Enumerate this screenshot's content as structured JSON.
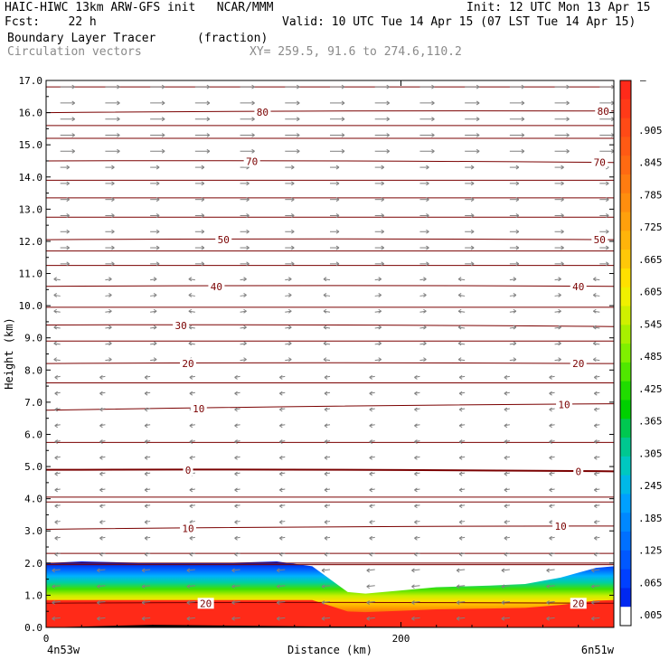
{
  "header": {
    "model_line": "HAIC-HIWC 13km ARW-GFS init   NCAR/MMM",
    "init_line": "Init: 12 UTC Mon 13 Apr 15",
    "fcst_label": "Fcst:    22 h",
    "valid_line": "Valid: 10 UTC Tue 14 Apr 15 (07 LST Tue 14 Apr 15)",
    "field_name": "Boundary Layer Tracer",
    "field_units": "(fraction)",
    "vector_name": "Circulation vectors",
    "xy_line": "XY= 259.5, 91.6 to 274.6,110.2"
  },
  "chart_data": {
    "type": "heatmap",
    "xlabel": "Distance (km)",
    "ylabel": "Height (km)",
    "xlim": [
      0,
      320
    ],
    "ylim": [
      0,
      17
    ],
    "x_ticks": [
      0,
      200
    ],
    "x_tick_labels": [
      "0",
      "200"
    ],
    "x_end_labels": {
      "left": "4n53w",
      "right": "6n51w"
    },
    "y_ticks": [
      0,
      1,
      2,
      3,
      4,
      5,
      6,
      7,
      8,
      9,
      10,
      11,
      12,
      13,
      14,
      15,
      16,
      17
    ],
    "y_tick_labels": [
      "0.0",
      "1.0",
      "2.0",
      "3.0",
      "4.0",
      "5.0",
      "6.0",
      "7.0",
      "8.0",
      "9.0",
      "10.0",
      "11.0",
      "12.0",
      "13.0",
      "14.0",
      "15.0",
      "16.0",
      "17.0"
    ],
    "colorbar": {
      "labels": [
        ".905",
        ".845",
        ".785",
        ".725",
        ".665",
        ".605",
        ".545",
        ".485",
        ".425",
        ".365",
        ".305",
        ".245",
        ".185",
        ".125",
        ".065",
        ".005"
      ],
      "colors": [
        "#ff2a1a",
        "#ff3a18",
        "#ff4a16",
        "#ff5a14",
        "#ff6a12",
        "#ff7c10",
        "#ff8e0e",
        "#ffa00c",
        "#ffb40a",
        "#ffc808",
        "#ffe000",
        "#f0f000",
        "#d0f000",
        "#a8f000",
        "#80f000",
        "#50e800",
        "#20dc00",
        "#00d000",
        "#00c850",
        "#00c890",
        "#00c8c0",
        "#00b8e8",
        "#00a0ff",
        "#0088ff",
        "#0070ff",
        "#0058ff",
        "#0040ff",
        "#0028f0",
        "#ffffff"
      ],
      "top_marker": "–"
    },
    "tracer_top": {
      "x": [
        0,
        20,
        60,
        100,
        130,
        150,
        160,
        170,
        180,
        200,
        220,
        250,
        270,
        290,
        310,
        320
      ],
      "height_km": [
        2.0,
        2.05,
        2.0,
        2.0,
        2.05,
        1.9,
        1.5,
        1.1,
        1.05,
        1.15,
        1.25,
        1.3,
        1.35,
        1.55,
        1.85,
        1.9
      ]
    },
    "contours": [
      {
        "value": 20,
        "left_km": 0.75,
        "right_km": 0.75,
        "labels": [
          {
            "text": "20",
            "x": 90
          },
          {
            "text": "20",
            "x": 300
          }
        ]
      },
      {
        "value": 10,
        "left_km": 3.05,
        "right_km": 3.15,
        "labels": [
          {
            "text": "10",
            "x": 80
          },
          {
            "text": "10",
            "x": 290
          }
        ]
      },
      {
        "value": 0,
        "left_km": 4.9,
        "right_km": 4.85,
        "labels": [
          {
            "text": "0",
            "x": 80
          },
          {
            "text": "0",
            "x": 300
          }
        ]
      },
      {
        "value": -10,
        "left_km": 6.75,
        "right_km": 6.95,
        "labels": [
          {
            "text": "10",
            "x": 86
          },
          {
            "text": "10",
            "x": 292
          }
        ]
      },
      {
        "value": -20,
        "left_km": 8.2,
        "right_km": 8.2,
        "labels": [
          {
            "text": "20",
            "x": 80
          },
          {
            "text": "20",
            "x": 300
          }
        ]
      },
      {
        "value": -30,
        "left_km": 9.4,
        "right_km": 9.35,
        "labels": [
          {
            "text": "30",
            "x": 76
          }
        ]
      },
      {
        "value": -40,
        "left_km": 10.6,
        "right_km": 10.6,
        "labels": [
          {
            "text": "40",
            "x": 96
          },
          {
            "text": "40",
            "x": 300
          }
        ]
      },
      {
        "value": -50,
        "left_km": 12.05,
        "right_km": 12.05,
        "labels": [
          {
            "text": "50",
            "x": 100
          },
          {
            "text": "50",
            "x": 312
          }
        ]
      },
      {
        "value": -70,
        "left_km": 14.5,
        "right_km": 14.45,
        "labels": [
          {
            "text": "70",
            "x": 116
          },
          {
            "text": "70",
            "x": 312
          }
        ]
      },
      {
        "value": -80,
        "left_km": 16.0,
        "right_km": 16.05,
        "labels": [
          {
            "text": "80",
            "x": 122
          },
          {
            "text": "80",
            "x": 314
          }
        ]
      }
    ],
    "extra_isotherms_km": [
      1.95,
      2.0,
      2.3,
      3.9,
      4.05,
      5.75,
      7.6,
      8.9,
      9.95,
      11.25,
      11.7,
      12.75,
      13.35,
      13.9,
      15.2,
      15.6,
      16.8
    ],
    "vector_color": "#808080",
    "contour_color": "#7a0000"
  }
}
